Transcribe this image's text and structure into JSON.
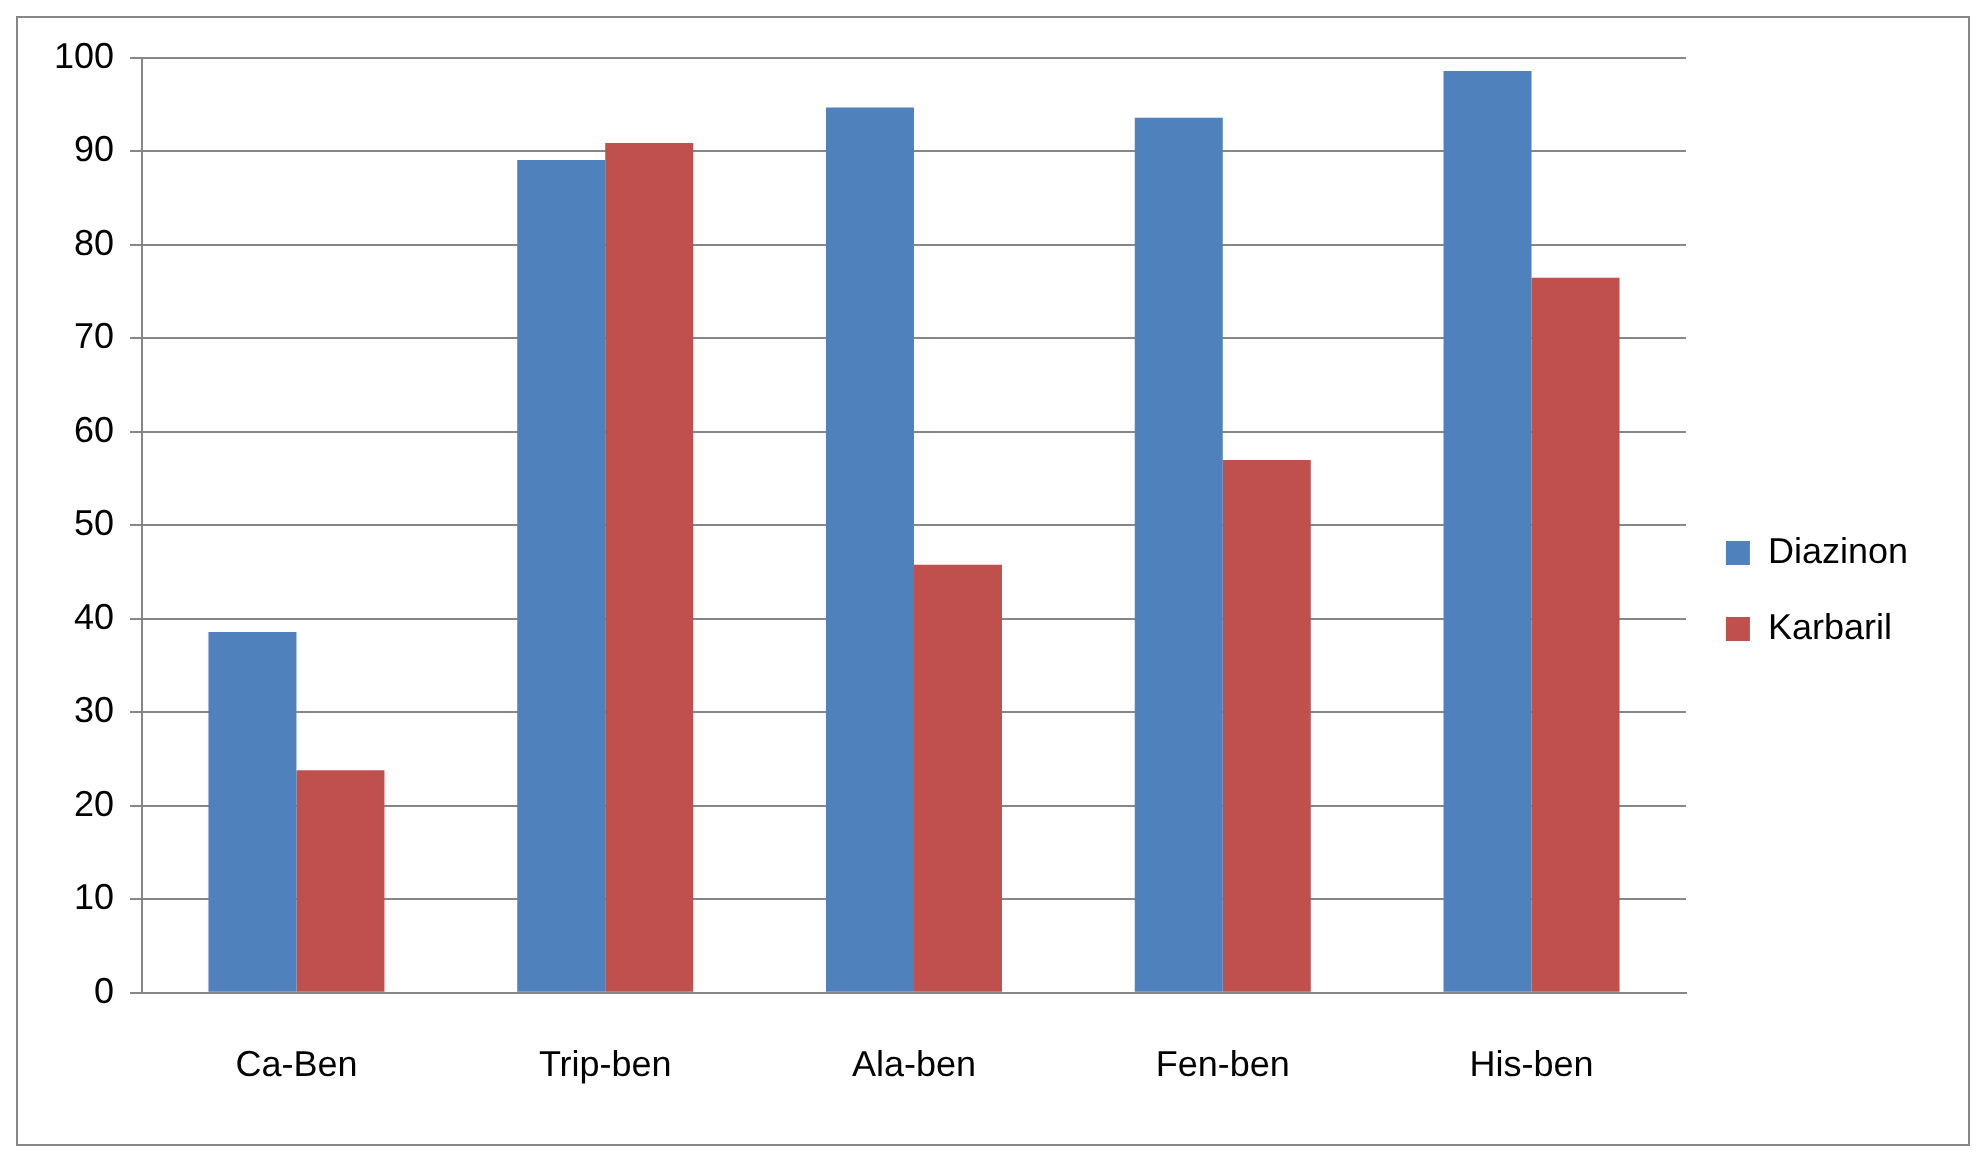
{
  "chart_data": {
    "type": "bar",
    "categories": [
      "Ca-Ben",
      "Trip-ben",
      "Ala-ben",
      "Fen-ben",
      "His-ben"
    ],
    "series": [
      {
        "name": "Diazinon",
        "color": "#4f81bd",
        "values": [
          38.6,
          89.1,
          94.7,
          93.6,
          98.6
        ]
      },
      {
        "name": "Karbaril",
        "color": "#c0504d",
        "values": [
          23.8,
          90.9,
          45.8,
          57.0,
          76.5
        ]
      }
    ],
    "ylim": [
      0,
      100
    ],
    "yticks": [
      0,
      10,
      20,
      30,
      40,
      50,
      60,
      70,
      80,
      90,
      100
    ],
    "grid": "y",
    "legend": "right"
  }
}
